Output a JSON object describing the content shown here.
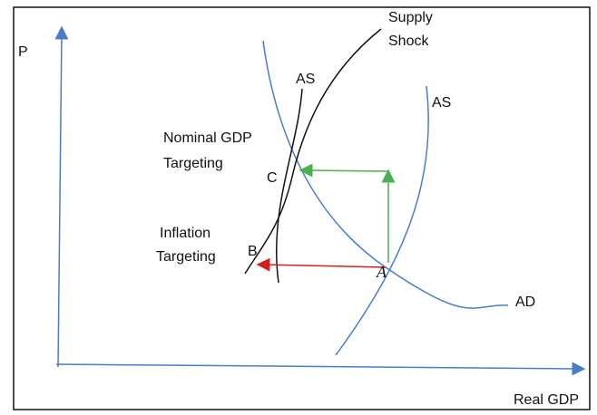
{
  "axes": {
    "y_label": "P",
    "x_label": "Real GDP"
  },
  "curves": {
    "supply_shock": [
      "Supply",
      "Shock"
    ],
    "as_new": "AS",
    "as_old": "AS",
    "ad": "AD"
  },
  "regimes": {
    "nominal_gdp": [
      "Nominal GDP",
      "Targeting"
    ],
    "inflation": [
      "Inflation",
      "Targeting"
    ]
  },
  "points": {
    "c": "C",
    "b": "B",
    "a": "A"
  }
}
